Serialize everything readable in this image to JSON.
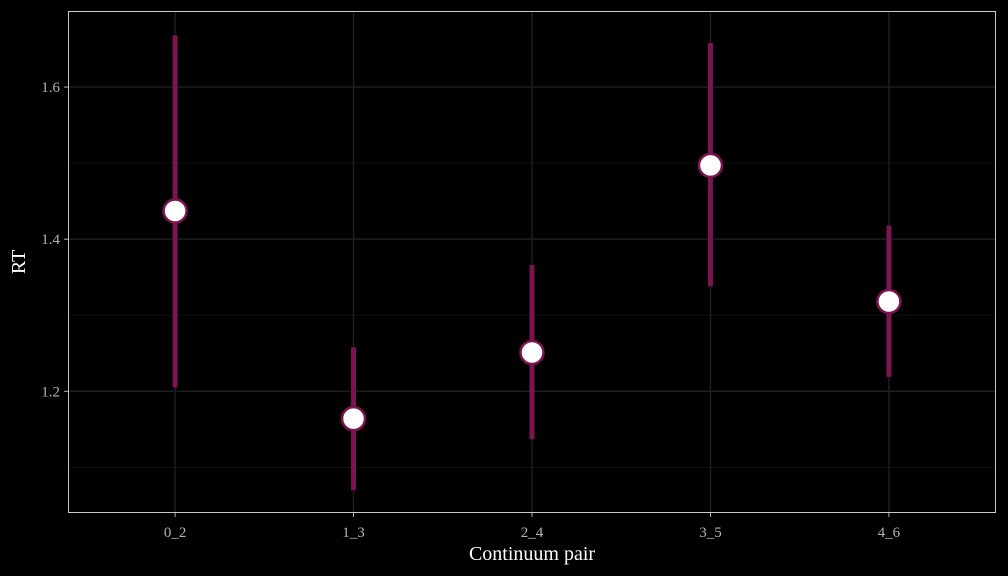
{
  "chart_data": {
    "type": "scatter",
    "title": "",
    "xlabel": "Continuum pair",
    "ylabel": "RT",
    "categories": [
      "0_2",
      "1_3",
      "2_4",
      "3_5",
      "4_6"
    ],
    "values": [
      1.437,
      1.164,
      1.251,
      1.497,
      1.318
    ],
    "lower": [
      1.205,
      1.07,
      1.137,
      1.338,
      1.219
    ],
    "upper": [
      1.668,
      1.258,
      1.366,
      1.658,
      1.418
    ],
    "ylim": [
      1.04,
      1.7
    ],
    "yticks": [
      1.2,
      1.4,
      1.6
    ],
    "ytick_labels": [
      "1.2",
      "1.4",
      "1.6"
    ],
    "yminor": [
      1.1,
      1.3,
      1.5,
      1.7
    ],
    "grid": true,
    "legend": "none",
    "colors": {
      "background": "#000000",
      "panel_border": "#c8c8c8",
      "grid_major": "#1e1e1e",
      "grid_minor": "#111111",
      "errorbar": "#7b1450",
      "point_fill": "#ffffff",
      "point_stroke": "#7b1450"
    }
  }
}
